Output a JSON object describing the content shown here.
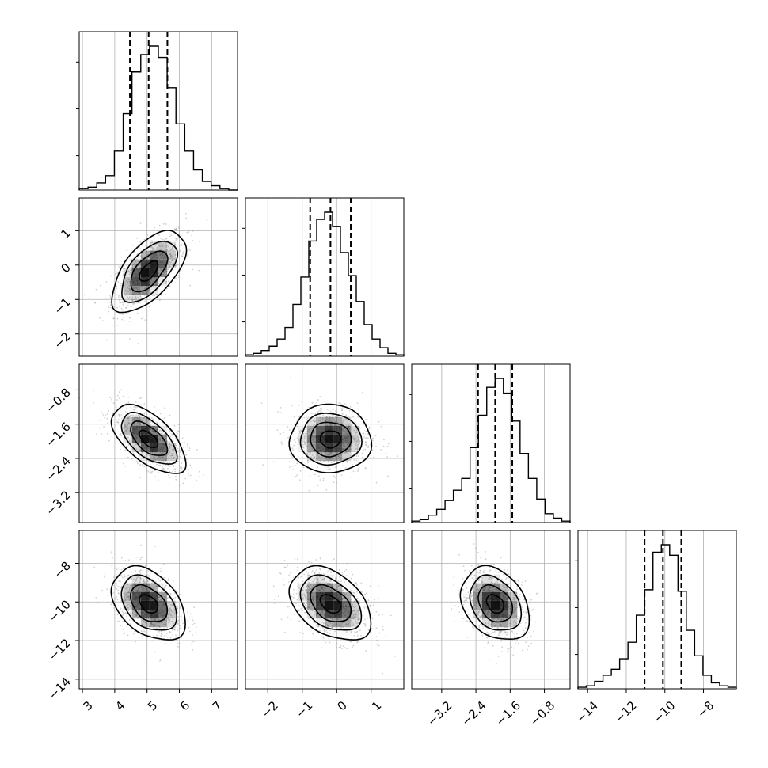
{
  "chart_data": {
    "type": "corner",
    "grid": true,
    "parameters": [
      {
        "range": [
          2.9,
          7.8
        ],
        "ticks": [
          3,
          4,
          5,
          6,
          7
        ],
        "tick_labels": [
          "3",
          "4",
          "5",
          "6",
          "7"
        ],
        "mean": 5.05,
        "sd": 0.57,
        "quantiles": [
          4.47,
          5.05,
          5.63
        ],
        "hist_bins": [
          0.01,
          0.02,
          0.05,
          0.1,
          0.27,
          0.53,
          0.82,
          0.94,
          1.0,
          0.92,
          0.71,
          0.46,
          0.27,
          0.14,
          0.06,
          0.03,
          0.01,
          0.0
        ]
      },
      {
        "range": [
          -2.65,
          1.95
        ],
        "ticks": [
          -2,
          -1,
          0,
          1
        ],
        "tick_labels": [
          "−2",
          "−1",
          "0",
          "1"
        ],
        "mean": -0.18,
        "sd": 0.59,
        "quantiles": [
          -0.77,
          -0.18,
          0.41
        ],
        "hist_bins": [
          0.01,
          0.02,
          0.04,
          0.07,
          0.12,
          0.2,
          0.36,
          0.55,
          0.8,
          0.95,
          1.0,
          0.9,
          0.72,
          0.56,
          0.38,
          0.22,
          0.12,
          0.06,
          0.02,
          0.01
        ]
      },
      {
        "range": [
          -3.9,
          -0.2
        ],
        "ticks": [
          -3.2,
          -2.4,
          -1.6,
          -0.8
        ],
        "tick_labels": [
          "−3.2",
          "−2.4",
          "−1.6",
          "−0.8"
        ],
        "mean": -1.95,
        "sd": 0.4,
        "quantiles": [
          -2.35,
          -1.95,
          -1.55
        ],
        "hist_bins": [
          0.01,
          0.02,
          0.05,
          0.09,
          0.15,
          0.22,
          0.3,
          0.51,
          0.73,
          0.92,
          0.98,
          0.88,
          0.69,
          0.47,
          0.3,
          0.16,
          0.06,
          0.03,
          0.01
        ]
      },
      {
        "range": [
          -14.5,
          -6.3
        ],
        "ticks": [
          -14,
          -12,
          -10,
          -8
        ],
        "tick_labels": [
          "−14",
          "−12",
          "−10",
          "−8"
        ],
        "mean": -10.1,
        "sd": 0.95,
        "quantiles": [
          -11.05,
          -10.1,
          -9.15
        ],
        "hist_bins": [
          0.01,
          0.02,
          0.05,
          0.09,
          0.13,
          0.2,
          0.31,
          0.49,
          0.66,
          0.91,
          0.96,
          0.89,
          0.65,
          0.39,
          0.22,
          0.09,
          0.04,
          0.02,
          0.01
        ]
      }
    ],
    "correlations": [
      {
        "i": 1,
        "j": 0,
        "r": 0.6
      },
      {
        "i": 2,
        "j": 0,
        "r": -0.6
      },
      {
        "i": 2,
        "j": 1,
        "r": 0.0
      },
      {
        "i": 3,
        "j": 0,
        "r": -0.4
      },
      {
        "i": 3,
        "j": 1,
        "r": -0.4
      },
      {
        "i": 3,
        "j": 2,
        "r": -0.3
      }
    ],
    "contour_levels_sigma": [
      0.5,
      1.0,
      1.5,
      2.0
    ],
    "colors": {
      "line": "#000000",
      "grid": "#b0b0b0",
      "scatter": "#9a9a9a",
      "density": "#000000"
    }
  }
}
